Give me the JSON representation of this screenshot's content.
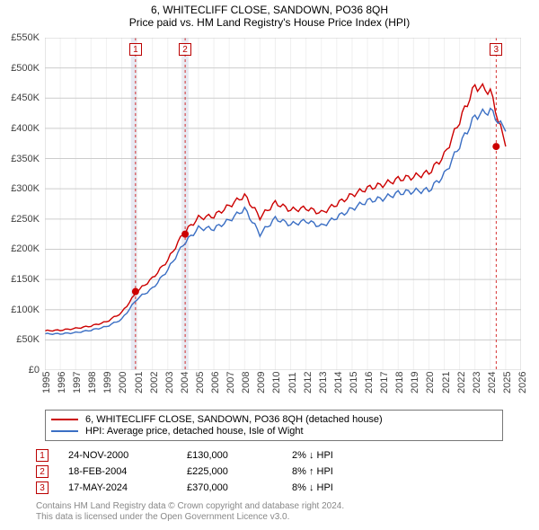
{
  "title": "6, WHITECLIFF CLOSE, SANDOWN, PO36 8QH",
  "subtitle": "Price paid vs. HM Land Registry's House Price Index (HPI)",
  "chart": {
    "type": "line",
    "x_years": [
      1995,
      1996,
      1997,
      1998,
      1999,
      2000,
      2001,
      2002,
      2003,
      2004,
      2005,
      2006,
      2007,
      2008,
      2009,
      2010,
      2011,
      2012,
      2013,
      2014,
      2015,
      2016,
      2017,
      2018,
      2019,
      2020,
      2021,
      2022,
      2023,
      2024,
      2025,
      2026
    ],
    "ylim": [
      0,
      550000
    ],
    "ytick_step": 50000,
    "y_labels": [
      "£0",
      "£50K",
      "£100K",
      "£150K",
      "£200K",
      "£250K",
      "£300K",
      "£350K",
      "£400K",
      "£450K",
      "£500K",
      "£550K"
    ],
    "background_color": "#ffffff",
    "border_color": "#cccccc",
    "minor_grid_color": "#f0f0f0",
    "major_grid_color": "#cccccc",
    "shade_color": "#e7e9f2",
    "line_width": 1.4,
    "font_size": 11,
    "shaded_regions": [
      {
        "from_year": 2000.6,
        "to_year": 2001.0
      },
      {
        "from_year": 2003.9,
        "to_year": 2004.35
      }
    ],
    "series": [
      {
        "name": "6, WHITECLIFF CLOSE, SANDOWN, PO36 8QH (detached house)",
        "color": "#cc0000",
        "y": [
          65000,
          66000,
          69000,
          73000,
          80000,
          95000,
          130000,
          152000,
          182000,
          226000,
          252000,
          255000,
          272000,
          289000,
          253000,
          277000,
          265000,
          268000,
          260000,
          275000,
          290000,
          301000,
          307000,
          316000,
          320000,
          327000,
          355000,
          413000,
          470000,
          462000,
          370000
        ]
      },
      {
        "name": "HPI: Average price, detached house, Isle of Wight",
        "color": "#3b6fc4",
        "y": [
          60000,
          60000,
          62000,
          66000,
          72000,
          84000,
          118000,
          135000,
          166000,
          208000,
          235000,
          234000,
          248000,
          267000,
          225000,
          251000,
          241000,
          247000,
          238000,
          253000,
          267000,
          280000,
          284000,
          293000,
          296000,
          298000,
          323000,
          372000,
          420000,
          430000,
          395000
        ]
      }
    ],
    "markers": [
      {
        "label": "1",
        "year": 2000.9,
        "value": 130000,
        "dot_color": "#cc0000"
      },
      {
        "label": "2",
        "year": 2004.13,
        "value": 225000,
        "dot_color": "#cc0000"
      },
      {
        "label": "3",
        "year": 2024.38,
        "value": 370000,
        "dot_color": "#cc0000"
      }
    ]
  },
  "legend": {
    "items": [
      {
        "label": "6, WHITECLIFF CLOSE, SANDOWN, PO36 8QH (detached house)",
        "color": "#cc0000"
      },
      {
        "label": "HPI: Average price, detached house, Isle of Wight",
        "color": "#3b6fc4"
      }
    ]
  },
  "events": [
    {
      "num": "1",
      "date": "24-NOV-2000",
      "price": "£130,000",
      "pct": "2%",
      "dir": "↓",
      "suffix": "HPI"
    },
    {
      "num": "2",
      "date": "18-FEB-2004",
      "price": "£225,000",
      "pct": "8%",
      "dir": "↑",
      "suffix": "HPI"
    },
    {
      "num": "3",
      "date": "17-MAY-2024",
      "price": "£370,000",
      "pct": "8%",
      "dir": "↓",
      "suffix": "HPI"
    }
  ],
  "attribution": {
    "line1": "Contains HM Land Registry data © Crown copyright and database right 2024.",
    "line2": "This data is licensed under the Open Government Licence v3.0."
  }
}
